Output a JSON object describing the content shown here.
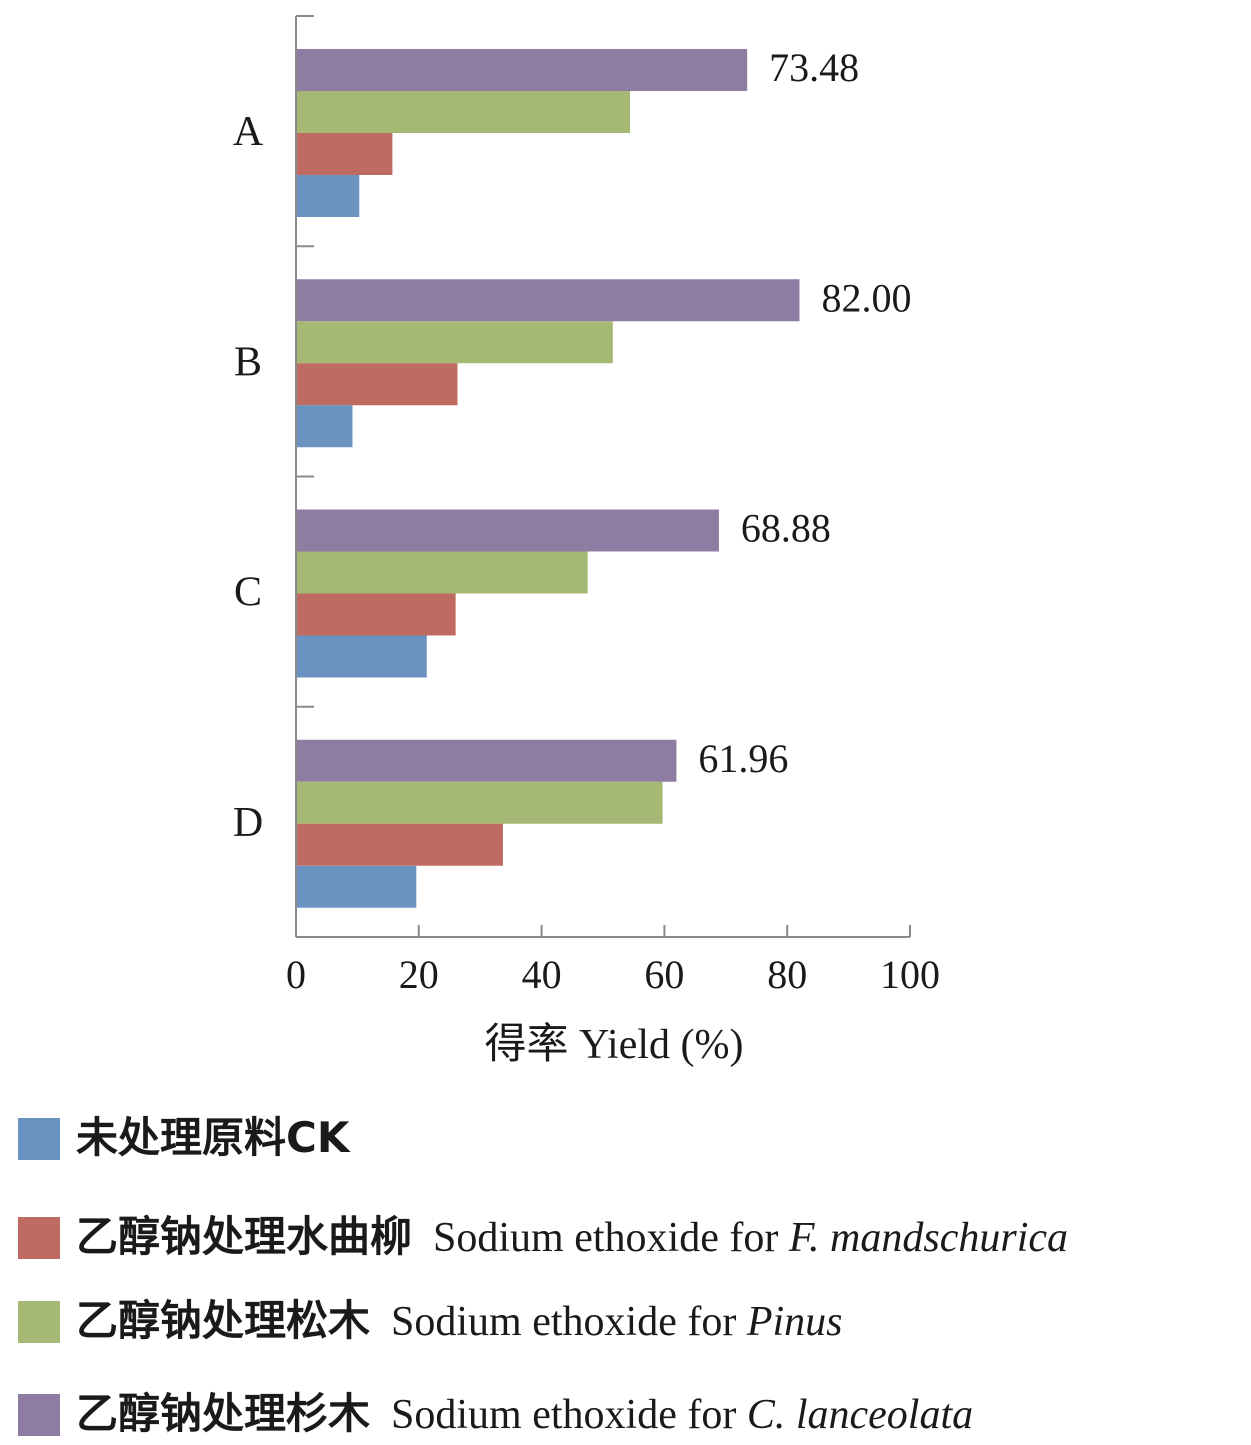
{
  "chart_data": {
    "type": "bar",
    "orientation": "horizontal",
    "categories": [
      "A",
      "B",
      "C",
      "D"
    ],
    "series": [
      {
        "name": "未处理原料CK",
        "color": "#6a93c2",
        "values": [
          10.3,
          9.2,
          21.3,
          19.6
        ]
      },
      {
        "name": "乙醇钠处理水曲柳 Sodium ethoxide for F. mandschurica",
        "color": "#c06b61",
        "values": [
          15.7,
          26.3,
          26.0,
          33.7
        ]
      },
      {
        "name": "乙醇钠处理松木 Sodium ethoxide for Pinus",
        "color": "#a6b974",
        "values": [
          54.4,
          51.6,
          47.5,
          59.7
        ]
      },
      {
        "name": "乙醇钠处理杉木 Sodium ethoxide for C. lanceolata",
        "color": "#8e7ca3",
        "values": [
          73.48,
          82.0,
          68.88,
          61.96
        ]
      }
    ],
    "data_labels": [
      "73.48",
      "82.00",
      "68.88",
      "61.96"
    ],
    "xlabel": "得率  Yield (%)",
    "xlim": [
      0,
      100
    ],
    "xticks": [
      "0",
      "20",
      "40",
      "60",
      "80",
      "100"
    ],
    "grid": false,
    "legend_position": "bottom"
  },
  "legend": [
    {
      "zh": "未处理原料CK",
      "en": "",
      "sp": ""
    },
    {
      "zh": "乙醇钠处理水曲柳",
      "en": "Sodium ethoxide for ",
      "sp": "F. mandschurica"
    },
    {
      "zh": "乙醇钠处理松木",
      "en": "Sodium ethoxide for ",
      "sp": "Pinus"
    },
    {
      "zh": "乙醇钠处理杉木",
      "en": "Sodium ethoxide for ",
      "sp": "C. lanceolata"
    }
  ]
}
